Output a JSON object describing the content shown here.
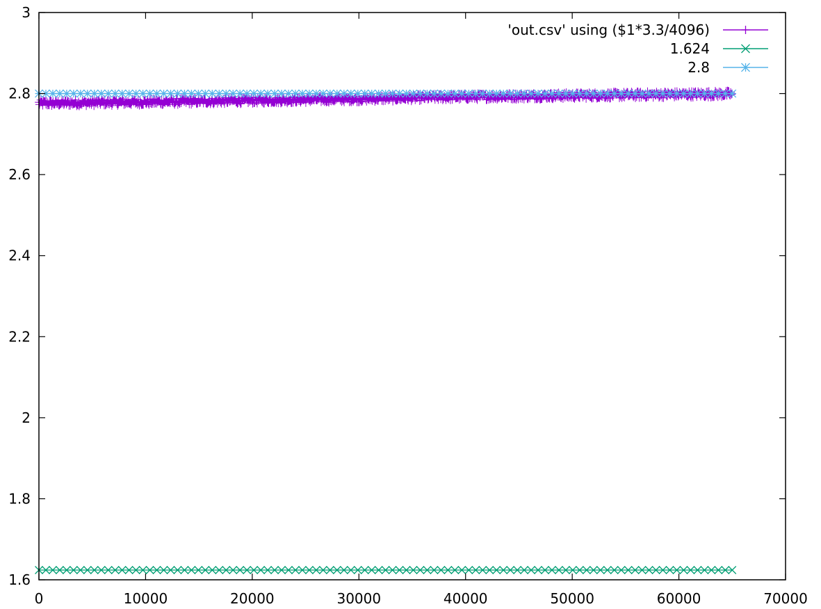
{
  "chart_data": {
    "type": "scatter",
    "title": "",
    "xlabel": "",
    "ylabel": "",
    "xlim": [
      0,
      70000
    ],
    "ylim": [
      1.6,
      3.0
    ],
    "x_ticks": [
      0,
      10000,
      20000,
      30000,
      40000,
      50000,
      60000,
      70000
    ],
    "x_tick_labels": [
      "0",
      "10000",
      "20000",
      "30000",
      "40000",
      "50000",
      "60000",
      "70000"
    ],
    "y_ticks": [
      1.6,
      1.8,
      2.0,
      2.2,
      2.4,
      2.6,
      2.8,
      3.0
    ],
    "y_tick_labels": [
      "1.6",
      "1.8",
      "2",
      "2.2",
      "2.4",
      "2.6",
      "2.8",
      "3"
    ],
    "grid": false,
    "legend_position": "top-right",
    "series": [
      {
        "name": "'out.csv' using ($1*3.3/4096)",
        "marker": "plus",
        "color": "#9400d3",
        "x_range": [
          0,
          65000
        ],
        "trend": [
          {
            "x": 0,
            "y": 2.776
          },
          {
            "x": 10000,
            "y": 2.779
          },
          {
            "x": 20000,
            "y": 2.783
          },
          {
            "x": 30000,
            "y": 2.787
          },
          {
            "x": 40000,
            "y": 2.792
          },
          {
            "x": 50000,
            "y": 2.795
          },
          {
            "x": 60000,
            "y": 2.798
          },
          {
            "x": 65000,
            "y": 2.799
          }
        ],
        "noise": 0.01
      },
      {
        "name": "1.624",
        "marker": "x",
        "color": "#009e73",
        "x_range": [
          0,
          65000
        ],
        "y": 1.624
      },
      {
        "name": "2.8",
        "marker": "star",
        "color": "#56b4e9",
        "x_range": [
          0,
          65000
        ],
        "y": 2.8
      }
    ]
  }
}
